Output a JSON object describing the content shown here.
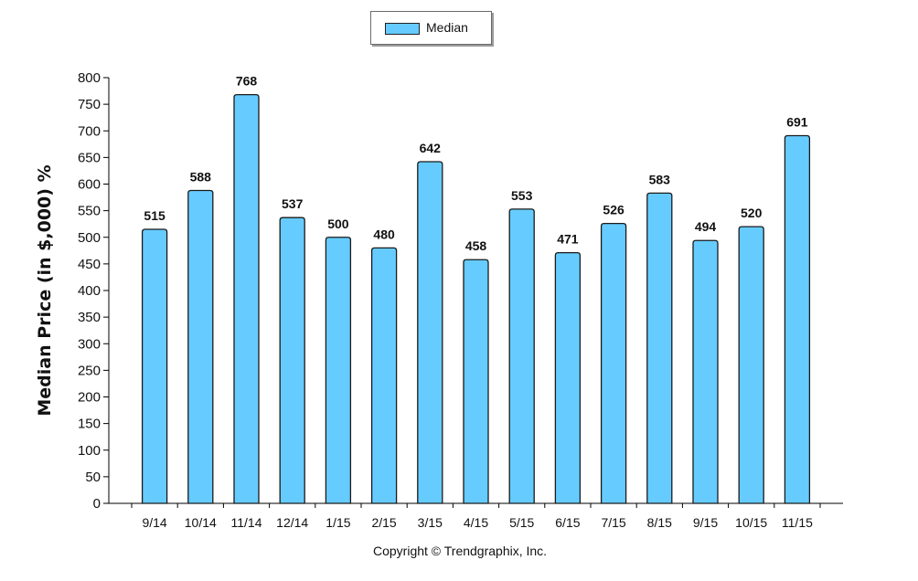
{
  "legend": {
    "label": "Median"
  },
  "copyright": "Copyright © Trendgraphix, Inc.",
  "chart_data": {
    "type": "bar",
    "title": "",
    "xlabel": "",
    "ylabel": "Median Price (in $,000) %",
    "ylim": [
      0,
      800
    ],
    "ytick_step": 50,
    "grid": false,
    "legend_position": "top-center",
    "bar_color": "#66ccff",
    "categories": [
      "9/14",
      "10/14",
      "11/14",
      "12/14",
      "1/15",
      "2/15",
      "3/15",
      "4/15",
      "5/15",
      "6/15",
      "7/15",
      "8/15",
      "9/15",
      "10/15",
      "11/15"
    ],
    "series": [
      {
        "name": "Median",
        "values": [
          515,
          588,
          768,
          537,
          500,
          480,
          642,
          458,
          553,
          471,
          526,
          583,
          494,
          520,
          691
        ]
      }
    ]
  }
}
